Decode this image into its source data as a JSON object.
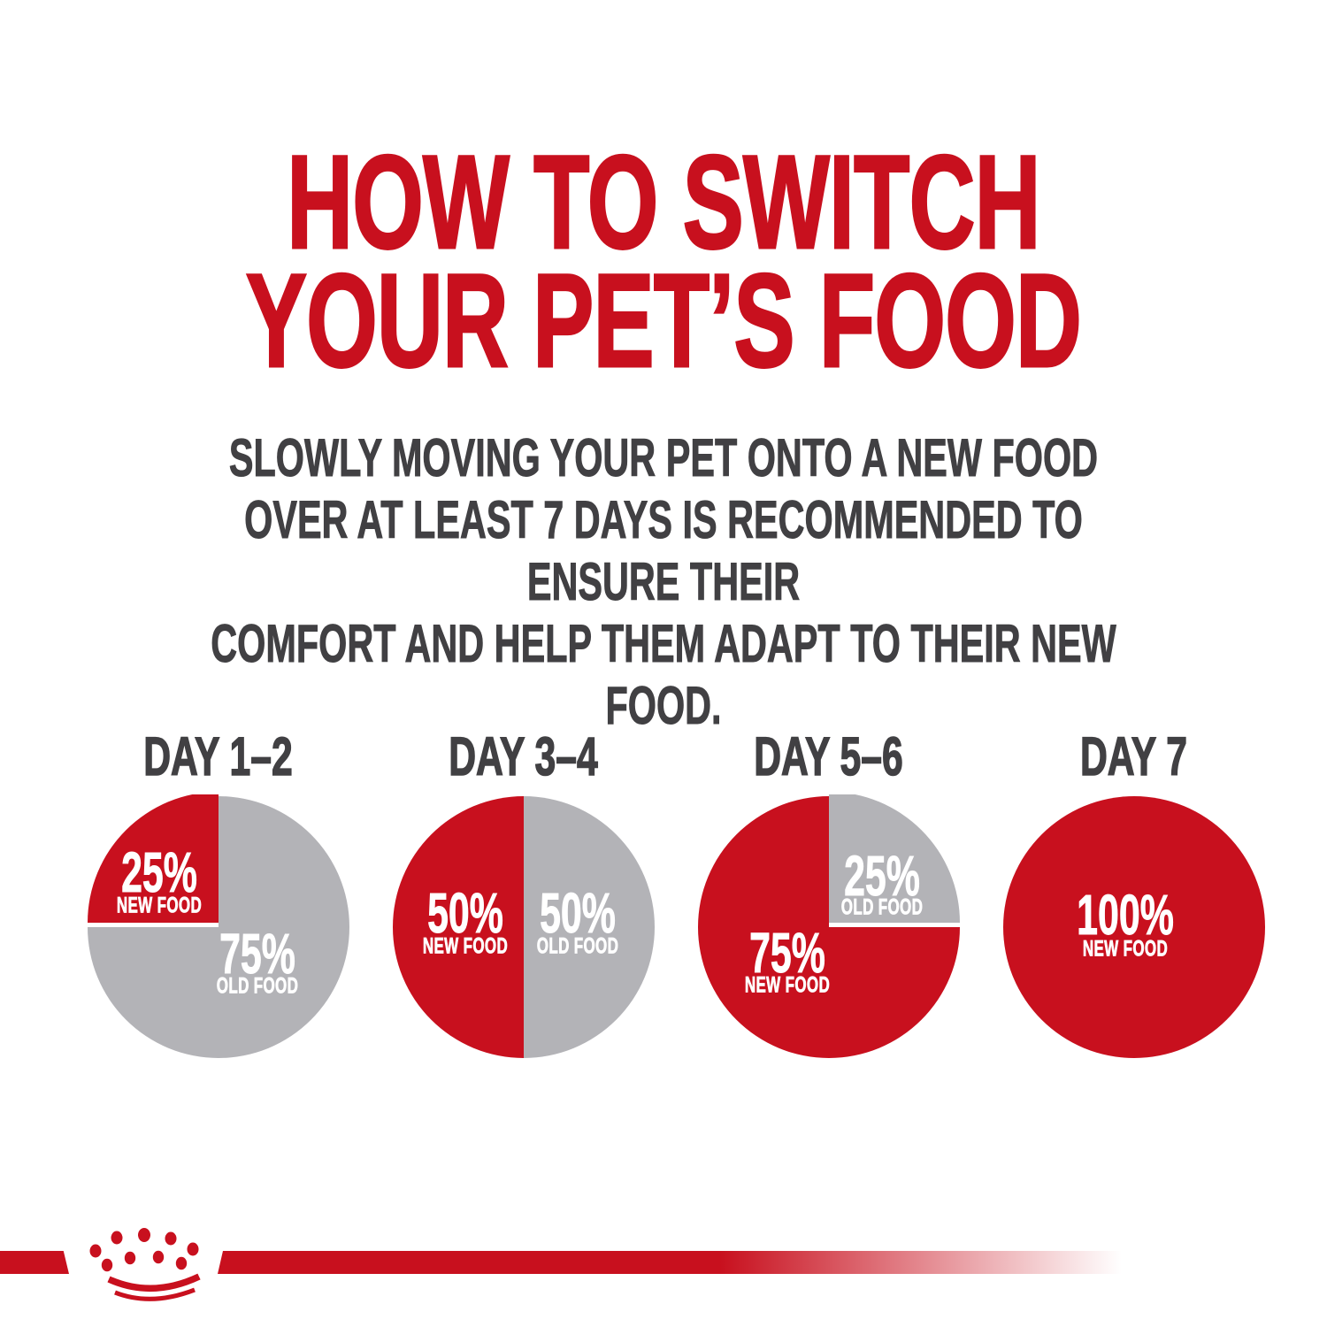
{
  "palette": {
    "red": "#c8101e",
    "gray": "#b3b3b7",
    "dark": "#414043",
    "pie_label": "#ffffff",
    "background": "#ffffff"
  },
  "title": {
    "line1": "HOW TO SWITCH",
    "line2": "YOUR PET’S FOOD"
  },
  "subtitle": {
    "line1": "SLOWLY MOVING YOUR PET ONTO A NEW FOOD",
    "line2": "OVER AT LEAST 7 DAYS IS RECOMMENDED TO ENSURE THEIR",
    "line3": "COMFORT AND HELP THEM ADAPT TO THEIR NEW FOOD."
  },
  "chart_data": {
    "type": "pie",
    "description": "Four pie charts showing the ratio of new food to old food during a 7-day transition",
    "colors": {
      "NEW FOOD": "#c8101e",
      "OLD FOOD": "#b3b3b7"
    },
    "label_color": "#ffffff",
    "legend_position": "labels inside slices",
    "pies": [
      {
        "day_label": "DAY 1–2",
        "slices": [
          {
            "label": "NEW FOOD",
            "value": 25
          },
          {
            "label": "OLD FOOD",
            "value": 75
          }
        ]
      },
      {
        "day_label": "DAY 3–4",
        "slices": [
          {
            "label": "NEW FOOD",
            "value": 50
          },
          {
            "label": "OLD FOOD",
            "value": 50
          }
        ]
      },
      {
        "day_label": "DAY 5–6",
        "slices": [
          {
            "label": "NEW FOOD",
            "value": 75
          },
          {
            "label": "OLD FOOD",
            "value": 25
          }
        ]
      },
      {
        "day_label": "DAY 7",
        "slices": [
          {
            "label": "NEW FOOD",
            "value": 100
          }
        ]
      }
    ]
  },
  "footer": {
    "brand_icon": "royal-canin-crown-icon"
  }
}
